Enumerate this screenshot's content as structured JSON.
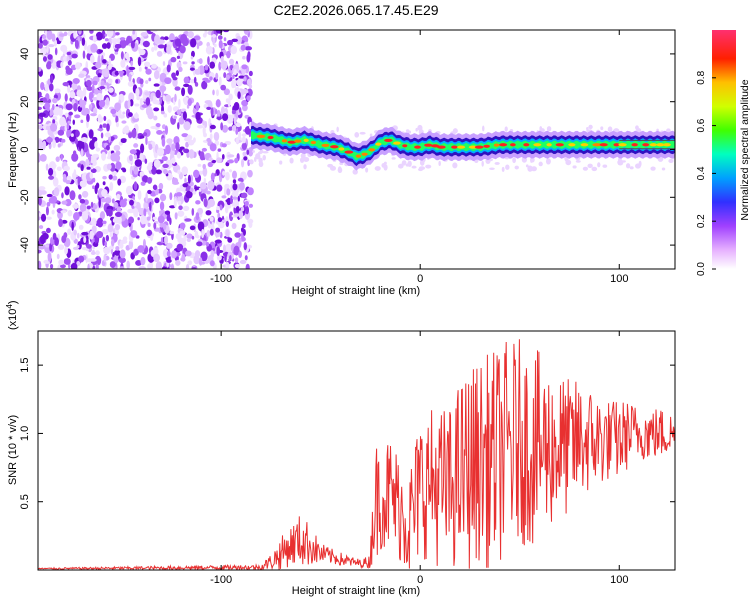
{
  "title": "C2E2.2026.065.17.45.E29",
  "chart_data": [
    {
      "type": "heatmap",
      "xlabel": "Height of straight line (km)",
      "ylabel": "Frequency (Hz)",
      "xlim": [
        -192,
        128
      ],
      "ylim": [
        -50,
        50
      ],
      "xticks": [
        -100,
        0,
        100
      ],
      "xtick_labels": [
        "-100",
        "0",
        "100"
      ],
      "yticks": [
        -40,
        -20,
        0,
        20,
        40
      ],
      "ytick_labels": [
        "-40",
        "-20",
        "0",
        "20",
        "40"
      ],
      "colorbar": {
        "label": "Normalized spectral amplitude",
        "range": [
          0,
          1
        ],
        "ticks": [
          0.0,
          0.2,
          0.4,
          0.6,
          0.8
        ],
        "tick_labels": [
          "0.0",
          "0.2",
          "0.4",
          "0.6",
          "0.8"
        ],
        "colors": [
          "#ffffff",
          "#d080ff",
          "#7000e0",
          "#0030ff",
          "#00c0ff",
          "#00ff80",
          "#80ff00",
          "#ffff00",
          "#ff8000",
          "#ff0000",
          "#ff40c0"
        ]
      },
      "noise_region_x": [
        -192,
        -85
      ],
      "signal_ridge": {
        "x": [
          -85,
          -75,
          -65,
          -58,
          -50,
          -42,
          -36,
          -32,
          -28,
          -24,
          -20,
          -15,
          -10,
          -5,
          0,
          5,
          10,
          20,
          30,
          40,
          50,
          60,
          70,
          80,
          90,
          100,
          110,
          128
        ],
        "frequency": [
          6,
          5,
          3,
          4,
          2,
          1,
          -1,
          -3,
          -2,
          0,
          3,
          4,
          2,
          1,
          1,
          2,
          1,
          1,
          1,
          2,
          2,
          2,
          2,
          2,
          2,
          2,
          2,
          2
        ]
      }
    },
    {
      "type": "line",
      "xlabel": "Height of straight line (km)",
      "ylabel": "SNR (10 * v/v)",
      "multiplier_label": "(x10",
      "multiplier_exp": "4",
      "multiplier_close": ")",
      "xlim": [
        -192,
        128
      ],
      "ylim": [
        0,
        1.75
      ],
      "xticks": [
        -100,
        0,
        100
      ],
      "xtick_labels": [
        "-100",
        "0",
        "100"
      ],
      "yticks": [
        0.5,
        1.0,
        1.5
      ],
      "ytick_labels": [
        "0.5",
        "1.0",
        "1.5"
      ],
      "line_color": "#e83030",
      "series": [
        {
          "name": "SNR",
          "x": [
            -192,
            -80,
            -75,
            -70,
            -65,
            -60,
            -55,
            -50,
            -45,
            -40,
            -35,
            -30,
            -25,
            -24,
            -22,
            -20,
            -15,
            -10,
            -5,
            0,
            5,
            10,
            15,
            20,
            25,
            30,
            35,
            40,
            45,
            50,
            55,
            60,
            65,
            70,
            75,
            80,
            85,
            90,
            95,
            100,
            105,
            110,
            115,
            120,
            128
          ],
          "baseline": [
            0.01,
            0.02,
            0.06,
            0.12,
            0.18,
            0.22,
            0.18,
            0.12,
            0.1,
            0.08,
            0.06,
            0.05,
            0.06,
            0.4,
            0.5,
            0.55,
            0.55,
            0.45,
            0.35,
            0.6,
            0.65,
            0.6,
            0.6,
            0.7,
            0.75,
            0.8,
            0.8,
            0.85,
            0.9,
            0.95,
            0.9,
            0.9,
            0.9,
            0.9,
            0.9,
            0.95,
            0.95,
            0.95,
            0.95,
            0.95,
            1.0,
            1.0,
            1.0,
            1.0,
            1.0
          ],
          "amplitude": [
            0.005,
            0.02,
            0.06,
            0.12,
            0.15,
            0.2,
            0.15,
            0.08,
            0.06,
            0.05,
            0.04,
            0.03,
            0.05,
            0.35,
            0.45,
            0.4,
            0.45,
            0.4,
            0.45,
            0.55,
            0.55,
            0.6,
            0.6,
            0.7,
            0.75,
            0.75,
            0.8,
            0.8,
            0.8,
            0.75,
            0.75,
            0.7,
            0.6,
            0.55,
            0.5,
            0.45,
            0.4,
            0.35,
            0.3,
            0.3,
            0.25,
            0.2,
            0.2,
            0.2,
            0.15
          ]
        }
      ]
    }
  ]
}
